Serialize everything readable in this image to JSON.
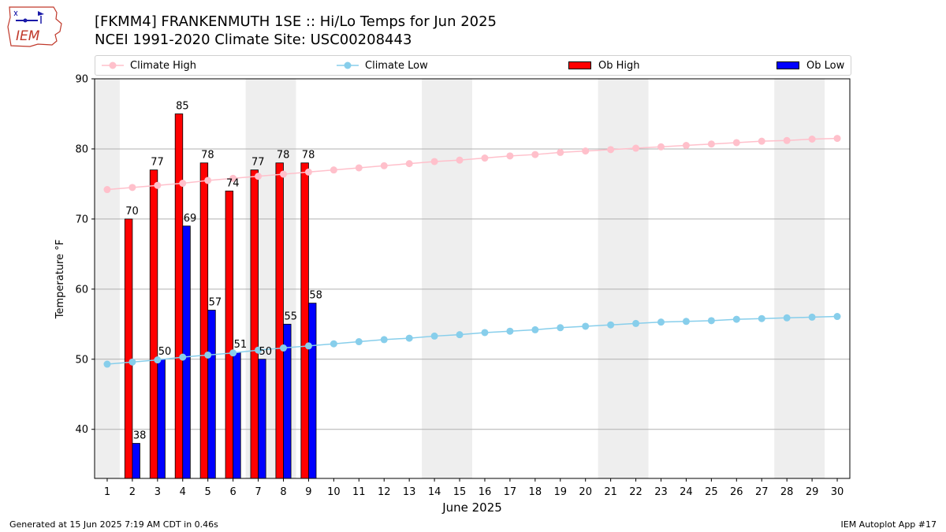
{
  "header": {
    "title": "[FKMM4] FRANKENMUTH 1SE :: Hi/Lo Temps for Jun 2025",
    "subtitle": "NCEI 1991-2020 Climate Site: USC00208443",
    "logo_text": "IEM"
  },
  "footer": {
    "generated": "Generated at 15 Jun 2025 7:19 AM CDT in 0.46s",
    "app": "IEM Autoplot App #17"
  },
  "colors": {
    "climate_high": "#ffc0cb",
    "climate_low": "#87ceeb",
    "ob_high": "#ff0000",
    "ob_low": "#0000ff",
    "weekend_shade": "#eeeeee",
    "grid": "#b0b0b0"
  },
  "legend": {
    "climate_high": "Climate High",
    "climate_low": "Climate Low",
    "ob_high": "Ob High",
    "ob_low": "Ob Low"
  },
  "chart_data": {
    "type": "bar",
    "xlabel": "June 2025",
    "ylabel": "Temperature °F",
    "ylim": [
      33,
      90
    ],
    "xlim": [
      0.5,
      30.5
    ],
    "yticks": [
      40,
      50,
      60,
      70,
      80,
      90
    ],
    "grid": "horizontal",
    "legend_position": "top",
    "days": [
      1,
      2,
      3,
      4,
      5,
      6,
      7,
      8,
      9,
      10,
      11,
      12,
      13,
      14,
      15,
      16,
      17,
      18,
      19,
      20,
      21,
      22,
      23,
      24,
      25,
      26,
      27,
      28,
      29,
      30
    ],
    "weekend_spans": [
      [
        1,
        1
      ],
      [
        7,
        8
      ],
      [
        14,
        15
      ],
      [
        21,
        22
      ],
      [
        28,
        29
      ]
    ],
    "climate_high": [
      74.2,
      74.5,
      74.8,
      75.1,
      75.5,
      75.8,
      76.1,
      76.4,
      76.7,
      77.0,
      77.3,
      77.6,
      77.9,
      78.2,
      78.4,
      78.7,
      79.0,
      79.2,
      79.5,
      79.7,
      79.9,
      80.1,
      80.3,
      80.5,
      80.7,
      80.9,
      81.1,
      81.2,
      81.4,
      81.5
    ],
    "climate_low": [
      49.3,
      49.6,
      49.9,
      50.3,
      50.6,
      50.9,
      51.3,
      51.6,
      51.9,
      52.2,
      52.5,
      52.8,
      53.0,
      53.3,
      53.5,
      53.8,
      54.0,
      54.2,
      54.5,
      54.7,
      54.9,
      55.1,
      55.3,
      55.4,
      55.5,
      55.7,
      55.8,
      55.9,
      56.0,
      56.1
    ],
    "ob_high": {
      "days": [
        2,
        3,
        4,
        5,
        6,
        7,
        8,
        9
      ],
      "values": [
        70,
        77,
        85,
        78,
        74,
        77,
        78,
        78
      ]
    },
    "ob_low": {
      "days": [
        2,
        3,
        4,
        5,
        6,
        7,
        8,
        9
      ],
      "values": [
        38,
        50,
        69,
        57,
        51,
        50,
        55,
        58
      ]
    }
  }
}
